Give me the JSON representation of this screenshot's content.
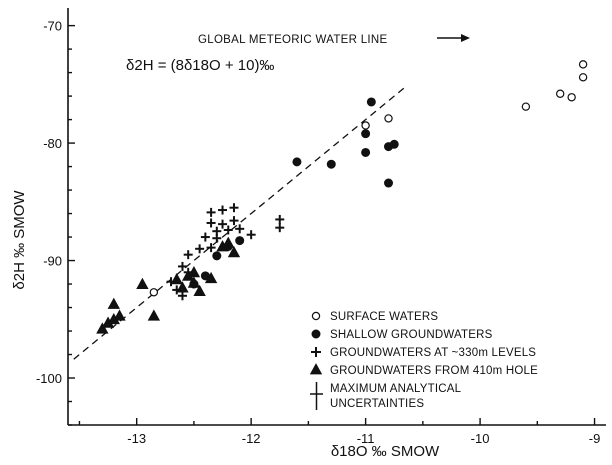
{
  "chart_data": {
    "type": "scatter",
    "title": "",
    "xlabel": "δ18O ‰ SMOW",
    "ylabel": "δ2H ‰ SMOW",
    "xlim": [
      -13.6,
      -8.9
    ],
    "ylim": [
      -104,
      -68.5
    ],
    "x_ticks": [
      -13,
      -12,
      -11,
      -10,
      -9
    ],
    "y_ticks": [
      -100,
      -90,
      -80,
      -70
    ],
    "grid": false,
    "legend_position": "bottom-right",
    "reference_line": {
      "label": "GLOBAL METEORIC WATER LINE",
      "equation": "δ2H = (8δ18O + 10)‰",
      "slope": 8,
      "intercept": 10,
      "x_range": [
        -13.55,
        -10.65
      ]
    },
    "series": [
      {
        "name": "SURFACE WATERS",
        "marker": "open-circle",
        "points": [
          [
            -12.85,
            -92.7
          ],
          [
            -11.0,
            -78.5
          ],
          [
            -10.8,
            -77.9
          ],
          [
            -9.6,
            -76.9
          ],
          [
            -9.3,
            -75.8
          ],
          [
            -9.2,
            -76.1
          ],
          [
            -9.1,
            -74.4
          ],
          [
            -9.1,
            -73.3
          ]
        ]
      },
      {
        "name": "SHALLOW GROUNDWATERS",
        "marker": "filled-circle",
        "points": [
          [
            -10.95,
            -76.5
          ],
          [
            -11.0,
            -79.2
          ],
          [
            -11.0,
            -80.8
          ],
          [
            -10.8,
            -80.3
          ],
          [
            -10.75,
            -80.1
          ],
          [
            -10.8,
            -83.4
          ],
          [
            -11.3,
            -81.8
          ],
          [
            -11.6,
            -81.6
          ],
          [
            -12.1,
            -88.3
          ],
          [
            -12.2,
            -88.8
          ],
          [
            -12.3,
            -89.6
          ],
          [
            -12.4,
            -91.3
          ],
          [
            -12.5,
            -92.0
          ]
        ]
      },
      {
        "name": "GROUNDWATERS AT ~330m LEVELS",
        "marker": "cross",
        "points": [
          [
            -12.35,
            -85.9
          ],
          [
            -12.25,
            -85.7
          ],
          [
            -12.15,
            -85.5
          ],
          [
            -12.35,
            -86.8
          ],
          [
            -12.25,
            -86.9
          ],
          [
            -12.15,
            -86.6
          ],
          [
            -12.3,
            -87.5
          ],
          [
            -12.2,
            -87.4
          ],
          [
            -12.1,
            -87.3
          ],
          [
            -12.0,
            -87.8
          ],
          [
            -12.3,
            -88.1
          ],
          [
            -12.4,
            -88.0
          ],
          [
            -12.45,
            -89.0
          ],
          [
            -12.55,
            -89.5
          ],
          [
            -12.35,
            -88.9
          ],
          [
            -12.6,
            -90.5
          ],
          [
            -12.55,
            -91.0
          ],
          [
            -12.7,
            -91.8
          ],
          [
            -12.65,
            -92.5
          ],
          [
            -12.6,
            -93.0
          ],
          [
            -11.75,
            -86.5
          ],
          [
            -11.75,
            -87.2
          ]
        ]
      },
      {
        "name": "GROUNDWATERS FROM 410m HOLE",
        "marker": "filled-triangle",
        "points": [
          [
            -13.3,
            -95.8
          ],
          [
            -13.25,
            -95.3
          ],
          [
            -13.2,
            -95.0
          ],
          [
            -13.15,
            -94.7
          ],
          [
            -13.2,
            -93.7
          ],
          [
            -12.95,
            -92.0
          ],
          [
            -12.85,
            -94.7
          ],
          [
            -12.65,
            -91.6
          ],
          [
            -12.55,
            -91.3
          ],
          [
            -12.5,
            -91.9
          ],
          [
            -12.45,
            -92.6
          ],
          [
            -12.35,
            -91.5
          ],
          [
            -12.25,
            -88.8
          ],
          [
            -12.2,
            -88.5
          ],
          [
            -12.15,
            -89.3
          ],
          [
            -12.5,
            -91.0
          ],
          [
            -12.6,
            -92.3
          ]
        ]
      }
    ],
    "legend_extra": {
      "label_line1": "MAXIMUM ANALYTICAL",
      "label_line2": "UNCERTAINTIES",
      "x_uncertainty": 0.1,
      "y_uncertainty": 1.0
    }
  }
}
